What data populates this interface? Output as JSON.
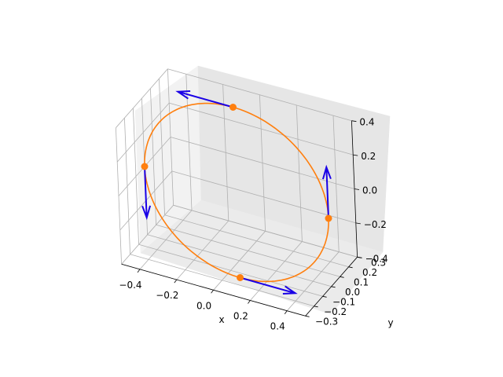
{
  "chart_data": {
    "type": "3d-line-quiver",
    "title": "",
    "xlabel": "x",
    "ylabel": "y",
    "zlabel": "",
    "xlim": [
      -0.5,
      0.5
    ],
    "ylim": [
      -0.3,
      0.3
    ],
    "zlim": [
      -0.4,
      0.4
    ],
    "x_ticks": [
      "−0.4",
      "−0.2",
      "0.0",
      "0.2",
      "0.4"
    ],
    "y_ticks": [
      "−0.3",
      "−0.2",
      "−0.1",
      "0.0",
      "0.1",
      "0.2",
      "0.3"
    ],
    "z_ticks": [
      "−0.4",
      "−0.2",
      "0.0",
      "0.2",
      "0.4"
    ],
    "grid": true,
    "curve": {
      "shape": "circle",
      "center": [
        0,
        0,
        0
      ],
      "radius": 0.5,
      "color": "#ff7f0e"
    },
    "points": [
      {
        "x": 0.0,
        "y": 0.0,
        "z": 0.5
      },
      {
        "x": 0.5,
        "y": 0.0,
        "z": 0.0
      },
      {
        "x": 0.0,
        "y": 0.0,
        "z": -0.5
      },
      {
        "x": -0.5,
        "y": 0.0,
        "z": 0.0
      }
    ],
    "point_color": "#ff7f0e",
    "arrows": [
      {
        "x": 0.0,
        "y": 0.0,
        "z": 0.5,
        "u": -0.3,
        "v": 0.0,
        "w": 0.0
      },
      {
        "x": 0.5,
        "y": 0.0,
        "z": 0.0,
        "u": 0.0,
        "v": 0.0,
        "w": 0.3
      },
      {
        "x": 0.0,
        "y": 0.0,
        "z": -0.5,
        "u": 0.3,
        "v": 0.0,
        "w": 0.0
      },
      {
        "x": -0.5,
        "y": 0.0,
        "z": 0.0,
        "u": 0.0,
        "v": 0.0,
        "w": -0.3
      }
    ],
    "arrow_color": "#1a00e6"
  }
}
